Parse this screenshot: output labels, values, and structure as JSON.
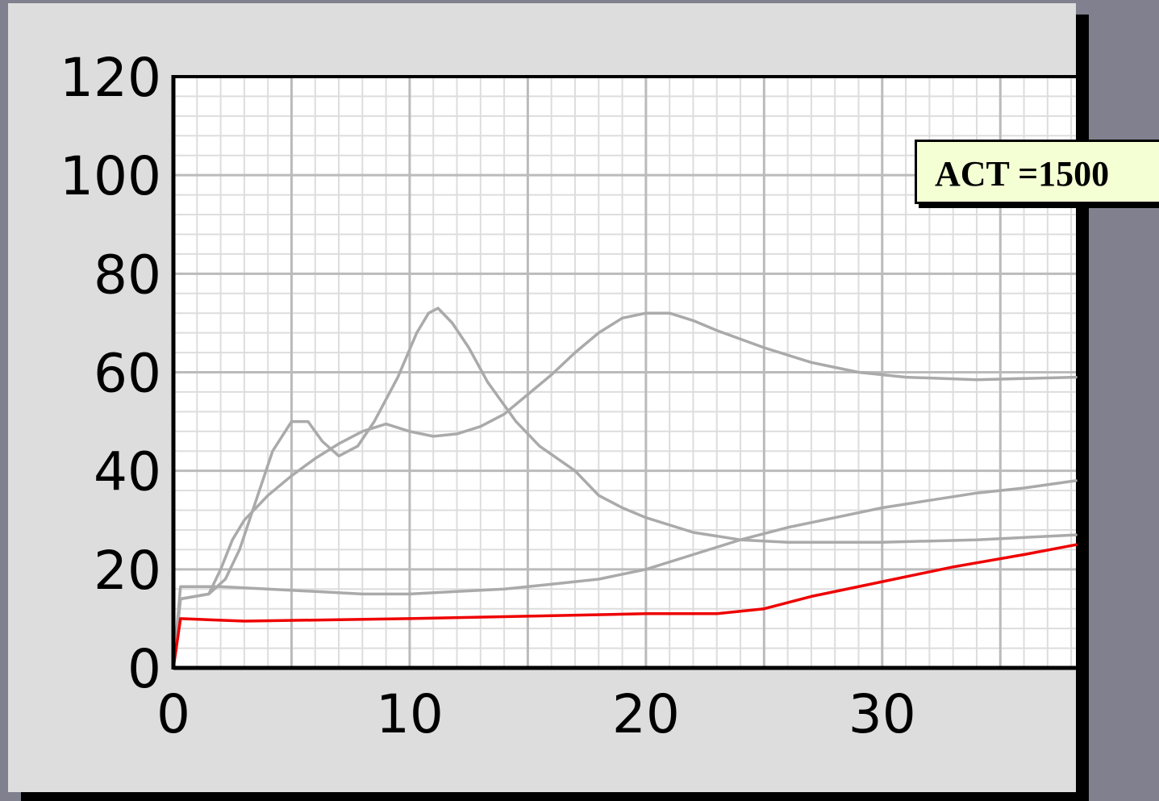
{
  "annotation": {
    "label": "ACT =1500"
  },
  "colors": {
    "background": "#80808f",
    "panel": "#dddddd",
    "plot_background": "#ffffff",
    "major_grid": "#bbbbbb",
    "minor_grid": "#dddddd",
    "reference_curves": "#aaaaaa",
    "highlight_curve": "#ee0000",
    "annotation_fill": "#f4ffd4"
  },
  "chart_data": {
    "type": "line",
    "title": "",
    "xlabel": "",
    "ylabel": "",
    "xlim": [
      0,
      38.2
    ],
    "ylim": [
      0,
      120
    ],
    "xticks": [
      0,
      10,
      20,
      30
    ],
    "yticks": [
      0,
      20,
      40,
      60,
      80,
      100,
      120
    ],
    "grid": true,
    "legend": "none",
    "annotations": [
      "ACT =1500"
    ],
    "series": [
      {
        "color": "#ee0000",
        "x": [
          0,
          0.3,
          3,
          10,
          15,
          20,
          23,
          25,
          27,
          30,
          33,
          36,
          38.2
        ],
        "y": [
          0,
          10,
          9.5,
          10,
          10.5,
          11,
          11,
          12,
          14.5,
          17.5,
          20.5,
          23,
          25
        ]
      },
      {
        "color": "#aaaaaa",
        "x": [
          0,
          0.3,
          1.5,
          2.2,
          2.8,
          3.5,
          4.2,
          5,
          5.7,
          6.3,
          7,
          7.8,
          8.5,
          9.5,
          10.3,
          10.8,
          11.2,
          11.8,
          12.5,
          13.3,
          14.5,
          15.5,
          17,
          18,
          19,
          20,
          22,
          24,
          26,
          30,
          34,
          38.2
        ],
        "y": [
          0,
          14,
          15,
          18,
          24,
          34,
          44,
          50,
          50,
          46,
          43,
          45,
          50,
          59,
          68,
          72,
          73,
          70,
          65,
          58,
          50,
          45,
          40,
          35,
          32.5,
          30.5,
          27.5,
          26,
          25.5,
          25.5,
          26,
          27
        ]
      },
      {
        "color": "#aaaaaa",
        "x": [
          0,
          0.3,
          1.5,
          2,
          2.5,
          3,
          4,
          5,
          6,
          7,
          8,
          9,
          10,
          11,
          12,
          13,
          14,
          15,
          16,
          17,
          18,
          19,
          20,
          21,
          22,
          23,
          25,
          27,
          29,
          31,
          34,
          38.2
        ],
        "y": [
          0,
          14,
          15,
          20,
          26,
          30,
          35,
          39,
          42.5,
          45.5,
          48,
          49.5,
          48,
          47,
          47.5,
          49,
          51.5,
          55.5,
          59.5,
          64,
          68,
          71,
          72,
          72,
          70.5,
          68.5,
          65,
          62,
          60,
          59,
          58.5,
          59
        ]
      },
      {
        "color": "#aaaaaa",
        "x": [
          0,
          0.3,
          2,
          4,
          6,
          8,
          10,
          12,
          14,
          16,
          18,
          20,
          22,
          24,
          26,
          28,
          30,
          32,
          34,
          36,
          38.2
        ],
        "y": [
          0,
          16.5,
          16.5,
          16,
          15.5,
          15,
          15,
          15.5,
          16,
          17,
          18,
          20,
          23,
          26,
          28.5,
          30.5,
          32.5,
          34,
          35.5,
          36.5,
          38
        ]
      }
    ]
  }
}
